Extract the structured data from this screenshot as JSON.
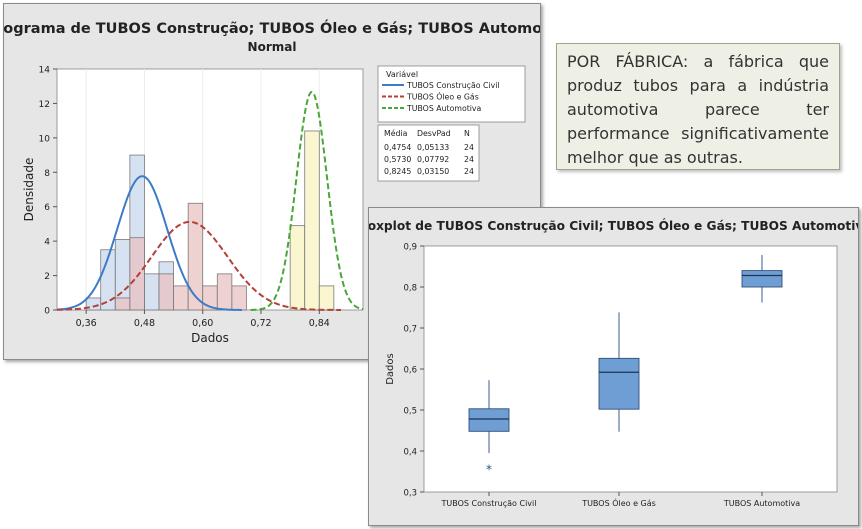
{
  "note": {
    "text": "POR FÁBRICA: a fábrica que produz tubos para a indústria automotiva parece ter performance significativamente melhor que as outras."
  },
  "chart_data": [
    {
      "type": "bar",
      "title": "Histograma de TUBOS Construção; TUBOS Óleo e Gás; TUBOS Automotiva",
      "subtitle": "Normal",
      "xlabel": "Dados",
      "ylabel": "Densidade",
      "xlim": [
        0.3,
        0.93
      ],
      "ylim": [
        0,
        14
      ],
      "x_ticks": [
        0.36,
        0.48,
        0.6,
        0.72,
        0.84
      ],
      "x_tick_labels": [
        "0,36",
        "0,48",
        "0,60",
        "0,72",
        "0,84"
      ],
      "y_ticks": [
        0,
        2,
        4,
        6,
        8,
        10,
        12,
        14
      ],
      "bin_width": 0.03,
      "legend_title": "Variável",
      "legend_position": "right",
      "stats_headers": [
        "Média",
        "DesvPad",
        "N"
      ],
      "series": [
        {
          "name": "TUBOS Construção Civil",
          "color": "#3d7bc6",
          "bar_fill": "#c8d8ee",
          "line_style": "solid",
          "mean": 0.4754,
          "stdev": 0.05133,
          "n": 24,
          "stats_text": [
            "0,4754",
            "0,05133",
            "24"
          ],
          "bins": [
            {
              "x": 0.375,
              "density": 0.7
            },
            {
              "x": 0.405,
              "density": 3.5
            },
            {
              "x": 0.435,
              "density": 4.1
            },
            {
              "x": 0.465,
              "density": 9.0
            },
            {
              "x": 0.495,
              "density": 2.1
            },
            {
              "x": 0.525,
              "density": 2.8
            }
          ]
        },
        {
          "name": "TUBOS Óleo e Gás",
          "color": "#b3403a",
          "bar_fill": "#e8c2c2",
          "line_style": "dashed",
          "mean": 0.573,
          "stdev": 0.07792,
          "n": 24,
          "stats_text": [
            "0,5730",
            "0,07792",
            "24"
          ],
          "bins": [
            {
              "x": 0.435,
              "density": 0.7
            },
            {
              "x": 0.465,
              "density": 4.2
            },
            {
              "x": 0.525,
              "density": 2.1
            },
            {
              "x": 0.555,
              "density": 1.4
            },
            {
              "x": 0.585,
              "density": 6.2
            },
            {
              "x": 0.615,
              "density": 1.4
            },
            {
              "x": 0.645,
              "density": 2.1
            },
            {
              "x": 0.675,
              "density": 1.4
            }
          ]
        },
        {
          "name": "TUBOS Automotiva",
          "color": "#4aa63a",
          "bar_fill": "#f7f3c0",
          "line_style": "dashed",
          "mean": 0.8245,
          "stdev": 0.0315,
          "n": 24,
          "stats_text": [
            "0,8245",
            "0,03150",
            "24"
          ],
          "bins": [
            {
              "x": 0.735,
              "density": 0.0
            },
            {
              "x": 0.765,
              "density": 0.0
            },
            {
              "x": 0.795,
              "density": 4.9
            },
            {
              "x": 0.825,
              "density": 10.4
            },
            {
              "x": 0.855,
              "density": 1.4
            }
          ]
        }
      ]
    },
    {
      "type": "box",
      "title": "Boxplot de TUBOS Construção Civil; TUBOS Óleo e Gás; TUBOS Automotiva",
      "xlabel": "",
      "ylabel": "Dados",
      "ylim": [
        0.3,
        0.9
      ],
      "y_ticks": [
        0.3,
        0.4,
        0.5,
        0.6,
        0.7,
        0.8,
        0.9
      ],
      "y_tick_labels": [
        "0,3",
        "0,4",
        "0,5",
        "0,6",
        "0,7",
        "0,8",
        "0,9"
      ],
      "box_color": "#6e9ed4",
      "categories": [
        "TUBOS Construção Civil",
        "TUBOS Óleo e Gás",
        "TUBOS Automotiva"
      ],
      "boxes": [
        {
          "whisker_low": 0.395,
          "q1": 0.448,
          "median": 0.478,
          "q3": 0.503,
          "whisker_high": 0.573,
          "outliers": [
            0.36
          ]
        },
        {
          "whisker_low": 0.447,
          "q1": 0.502,
          "median": 0.592,
          "q3": 0.626,
          "whisker_high": 0.738,
          "outliers": []
        },
        {
          "whisker_low": 0.762,
          "q1": 0.8,
          "median": 0.828,
          "q3": 0.84,
          "whisker_high": 0.878,
          "outliers": []
        }
      ]
    }
  ]
}
